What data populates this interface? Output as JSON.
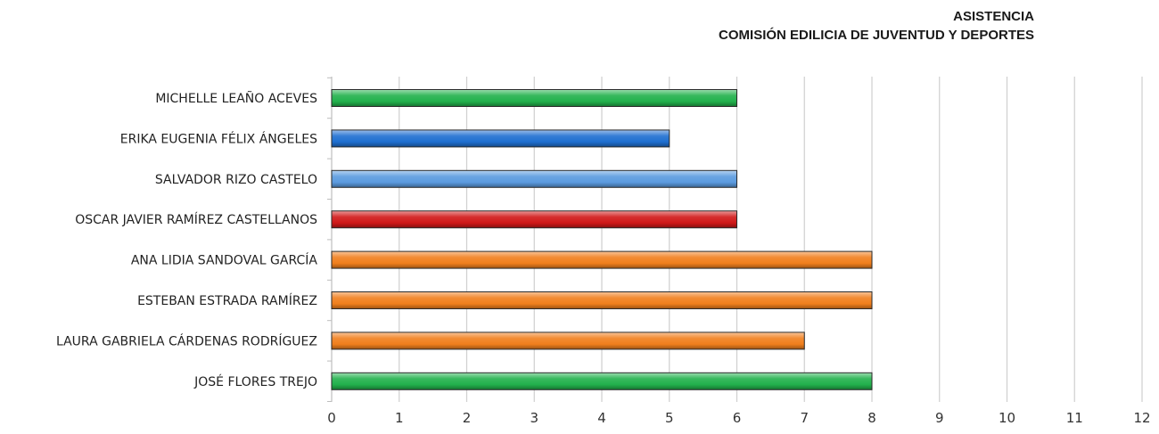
{
  "chart_data": {
    "type": "bar",
    "orientation": "horizontal",
    "title": "ASISTENCIA",
    "subtitle": "COMISIÓN EDILICIA DE JUVENTUD Y DEPORTES",
    "xlabel": "",
    "ylabel": "",
    "xlim": [
      0,
      12
    ],
    "xticks": [
      0,
      1,
      2,
      3,
      4,
      5,
      6,
      7,
      8,
      9,
      10,
      11,
      12
    ],
    "grid": "vertical",
    "legend": "none",
    "categories": [
      "MICHELLE LEAÑO ACEVES",
      "ERIKA EUGENIA FÉLIX ÁNGELES",
      "SALVADOR RIZO CASTELO",
      "OSCAR JAVIER RAMÍREZ CASTELLANOS",
      "ANA LIDIA SANDOVAL GARCÍA",
      "ESTEBAN ESTRADA RAMÍREZ",
      "LAURA GABRIELA CÁRDENAS RODRÍGUEZ",
      "JOSÉ FLORES TREJO"
    ],
    "values": [
      6,
      5,
      6,
      6,
      8,
      8,
      7,
      8
    ],
    "colors": [
      "#22b14c",
      "#1e6fd0",
      "#5b9bdf",
      "#d01818",
      "#f07f1d",
      "#f07f1d",
      "#f07f1d",
      "#22b14c"
    ]
  }
}
